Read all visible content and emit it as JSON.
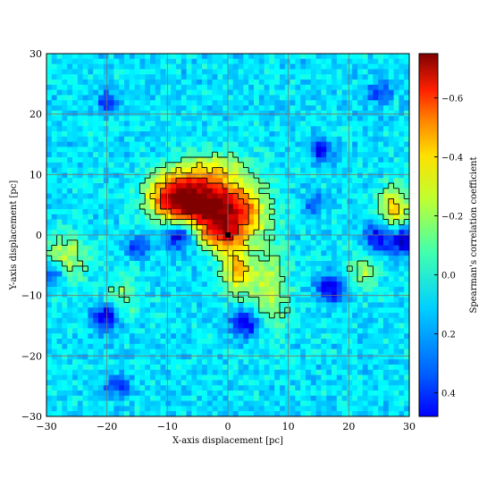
{
  "chart_data": {
    "type": "heatmap",
    "title": "",
    "xlabel": "X-axis displacement [pc]",
    "ylabel": "Y-axis displacement [pc]",
    "xlim": [
      -30,
      30
    ],
    "ylim": [
      -30,
      30
    ],
    "x_ticks": [
      "−30",
      "−20",
      "−10",
      "0",
      "10",
      "20",
      "30"
    ],
    "y_ticks": [
      "30",
      "20",
      "10",
      "0",
      "−10",
      "−20",
      "−30"
    ],
    "grid": true,
    "colormap": "jet",
    "colorbar": {
      "label": "Spearman's correlation coefficient",
      "range": [
        -0.75,
        0.48
      ],
      "tick_labels": [
        "−0.6",
        "−0.4",
        "−0.2",
        "0.0",
        "0.2",
        "0.4"
      ]
    },
    "marker": {
      "x": 0,
      "y": 0,
      "shape": "square",
      "color": "#000000"
    },
    "background_level": 0.05,
    "features": [
      {
        "x": -4,
        "y": 5,
        "sx": 4.2,
        "sy": 3.2,
        "value": -0.62
      },
      {
        "x": -9,
        "y": 6.5,
        "sx": 3.2,
        "sy": 2.6,
        "value": -0.45
      },
      {
        "x": 2,
        "y": 3.5,
        "sx": 3.5,
        "sy": 3.8,
        "value": -0.35
      },
      {
        "x": -1,
        "y": 0,
        "sx": 2.2,
        "sy": 1.8,
        "value": -0.32
      },
      {
        "x": 1.5,
        "y": -6,
        "sx": 1.8,
        "sy": 2.5,
        "value": -0.33
      },
      {
        "x": 6.5,
        "y": -9,
        "sx": 2.5,
        "sy": 4.5,
        "value": -0.2
      },
      {
        "x": -3,
        "y": 11,
        "sx": 4,
        "sy": 2,
        "value": -0.18
      },
      {
        "x": 27.5,
        "y": 4.5,
        "sx": 1.8,
        "sy": 2.5,
        "value": -0.35
      },
      {
        "x": -26.5,
        "y": -3.5,
        "sx": 2.6,
        "sy": 2.8,
        "value": -0.2
      },
      {
        "x": -17.5,
        "y": -10,
        "sx": 2,
        "sy": 2.5,
        "value": -0.14
      },
      {
        "x": 22.5,
        "y": -6,
        "sx": 1.8,
        "sy": 2.5,
        "value": -0.16
      },
      {
        "x": -8,
        "y": 0,
        "sx": 1.8,
        "sy": 1.6,
        "value": 0.45
      },
      {
        "x": 3,
        "y": -14.5,
        "sx": 1.6,
        "sy": 1.6,
        "value": 0.42
      },
      {
        "x": -20,
        "y": -13.5,
        "sx": 1.6,
        "sy": 1.6,
        "value": 0.4
      },
      {
        "x": 17,
        "y": -9,
        "sx": 1.6,
        "sy": 1.5,
        "value": 0.38
      },
      {
        "x": 25,
        "y": -0.5,
        "sx": 1.8,
        "sy": 1.8,
        "value": 0.35
      },
      {
        "x": 29,
        "y": -1,
        "sx": 1.2,
        "sy": 1.5,
        "value": 0.4
      },
      {
        "x": -29,
        "y": -6.5,
        "sx": 1.2,
        "sy": 1.3,
        "value": 0.33
      },
      {
        "x": -15,
        "y": -2,
        "sx": 1.2,
        "sy": 1.2,
        "value": 0.28
      },
      {
        "x": 15.5,
        "y": 14,
        "sx": 1.3,
        "sy": 1.4,
        "value": 0.32
      },
      {
        "x": -20,
        "y": 22,
        "sx": 1.2,
        "sy": 1.2,
        "value": 0.28
      },
      {
        "x": 25,
        "y": 23.5,
        "sx": 1.3,
        "sy": 1.2,
        "value": 0.28
      },
      {
        "x": -18,
        "y": -25,
        "sx": 1.5,
        "sy": 1.2,
        "value": 0.28
      },
      {
        "x": 14,
        "y": 5,
        "sx": 1.2,
        "sy": 1.2,
        "value": 0.25
      }
    ]
  }
}
